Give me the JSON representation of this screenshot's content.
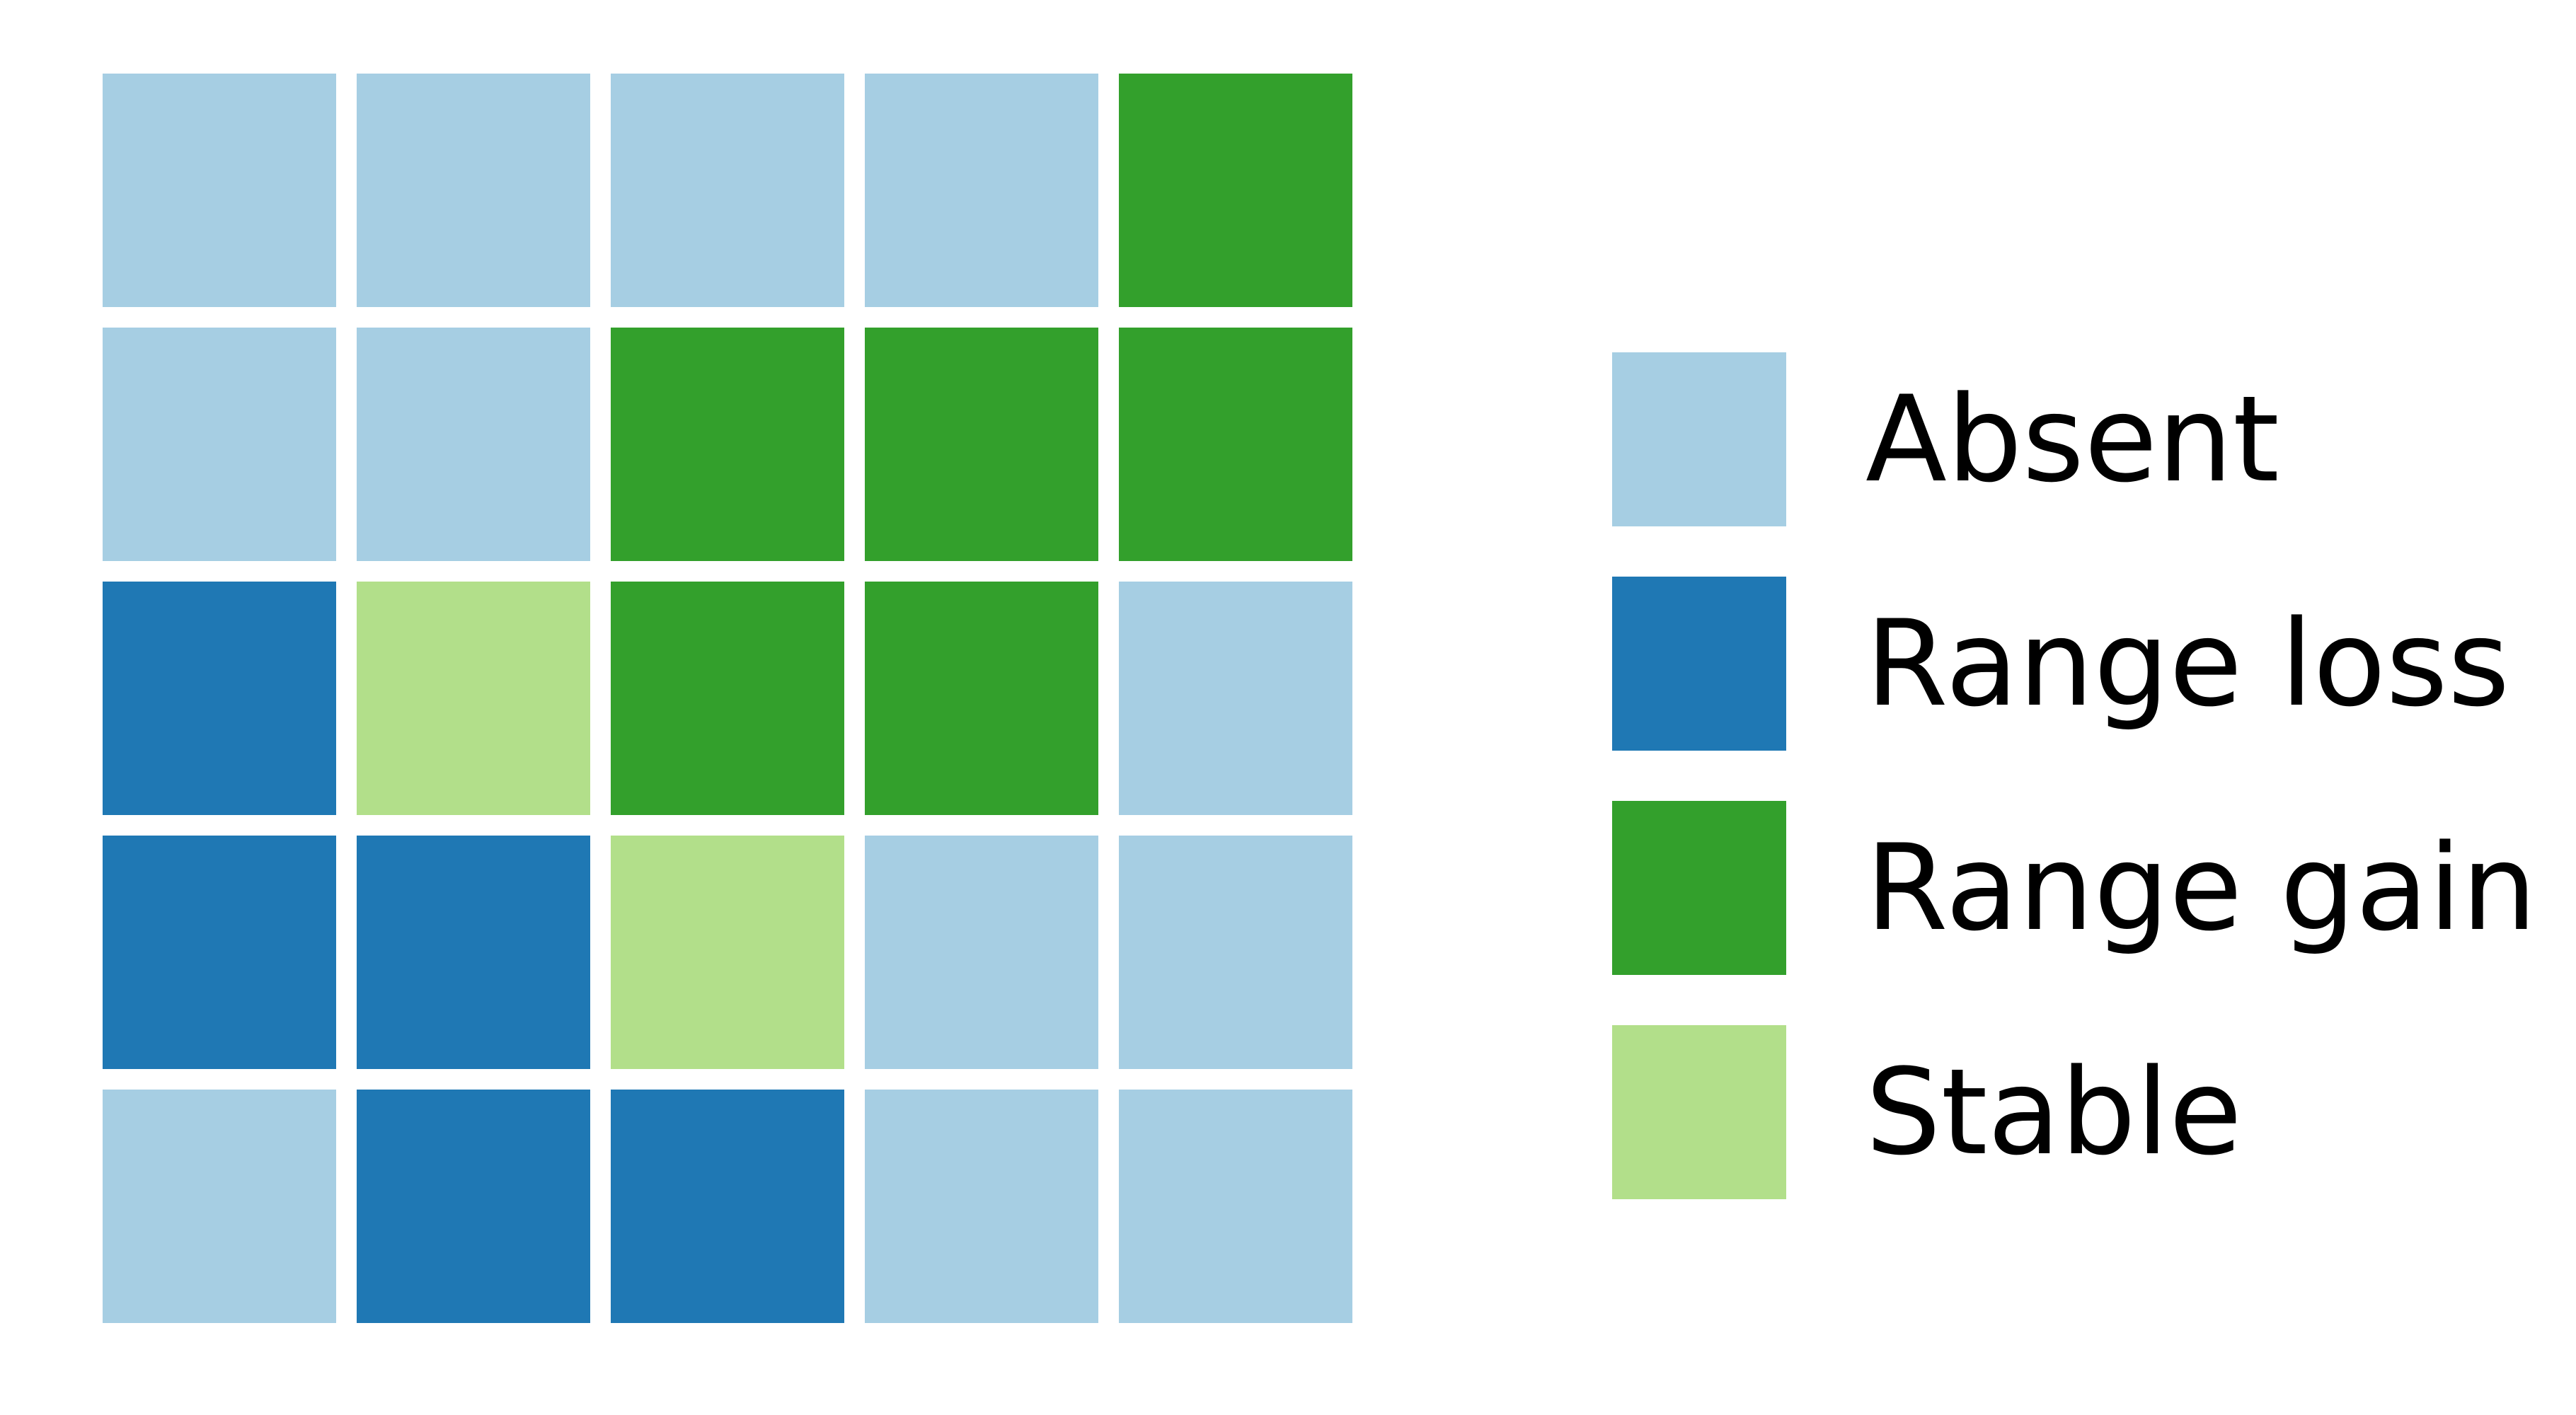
{
  "chart_data": {
    "type": "heatmap",
    "title": "",
    "xlabel": "",
    "ylabel": "",
    "rows": 5,
    "columns": 5,
    "grid": false,
    "legend_placement": "right",
    "categories": [
      "Absent",
      "Range loss",
      "Range gain",
      "Stable"
    ],
    "colors": {
      "Absent": "#a6cee3",
      "Range loss": "#1f78b4",
      "Range gain": "#33a02c",
      "Stable": "#b2df8a"
    },
    "cells": [
      [
        "Absent",
        "Absent",
        "Absent",
        "Absent",
        "Range gain"
      ],
      [
        "Absent",
        "Absent",
        "Range gain",
        "Range gain",
        "Range gain"
      ],
      [
        "Range loss",
        "Stable",
        "Range gain",
        "Range gain",
        "Absent"
      ],
      [
        "Range loss",
        "Range loss",
        "Stable",
        "Absent",
        "Absent"
      ],
      [
        "Absent",
        "Range loss",
        "Range loss",
        "Absent",
        "Absent"
      ]
    ],
    "legend": [
      {
        "label": "Absent",
        "color": "#a6cee3"
      },
      {
        "label": "Range loss",
        "color": "#1f78b4"
      },
      {
        "label": "Range gain",
        "color": "#33a02c"
      },
      {
        "label": "Stable",
        "color": "#b2df8a"
      }
    ]
  }
}
